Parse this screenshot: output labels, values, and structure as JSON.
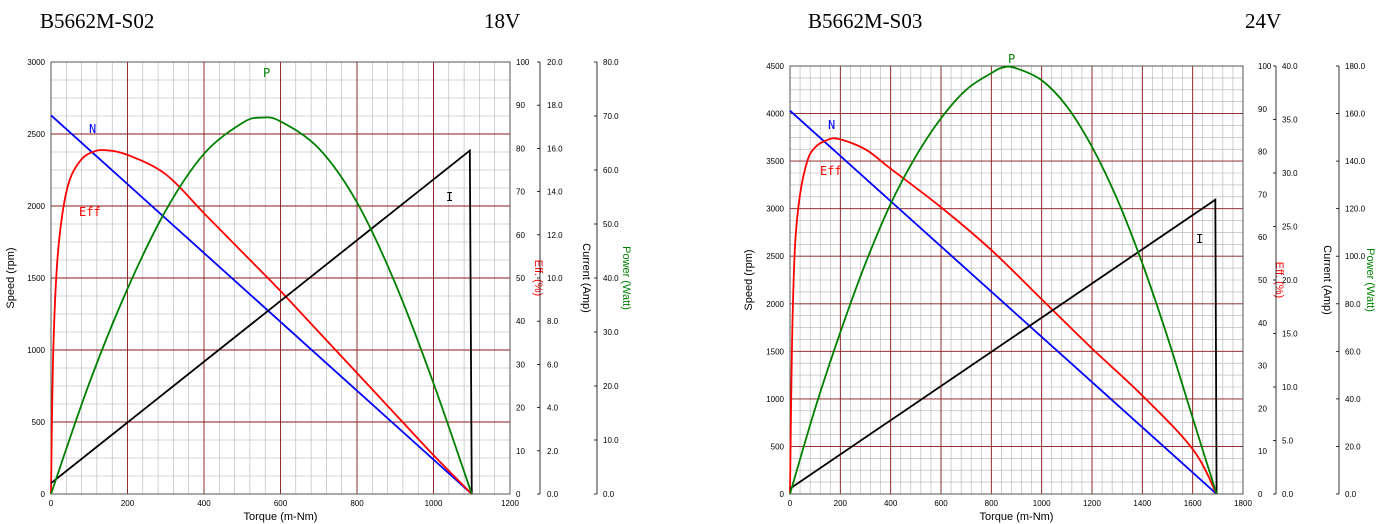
{
  "colors": {
    "speed": "#0000ff",
    "efficiency": "#ff0000",
    "current": "#000000",
    "power": "#008000",
    "major_grid": "#8b1a1a",
    "minor_grid": "#b0b0b0"
  },
  "chart_data": [
    {
      "type": "line",
      "model": "B5662M-S02",
      "voltage": "18V",
      "xlabel": "Torque (m-Nm)",
      "xlim": [
        0,
        1200
      ],
      "xticks": [
        "0",
        "200",
        "400",
        "600",
        "800",
        "1000",
        "1200"
      ],
      "grid": true,
      "axes": {
        "speed": {
          "label": "Speed (rpm)",
          "lim": [
            0,
            3000
          ],
          "ticks": [
            "0",
            "500",
            "1000",
            "1500",
            "2000",
            "2500",
            "3000"
          ]
        },
        "eff": {
          "label": "Eff. (%)",
          "lim": [
            0,
            100
          ],
          "ticks": [
            "0",
            "10",
            "20",
            "30",
            "40",
            "50",
            "60",
            "70",
            "80",
            "90",
            "100"
          ]
        },
        "current": {
          "label": "Current (Amp)",
          "lim": [
            0,
            20
          ],
          "ticks": [
            "0.0",
            "2.0",
            "4.0",
            "6.0",
            "8.0",
            "10.0",
            "12.0",
            "14.0",
            "16.0",
            "18.0",
            "20.0"
          ]
        },
        "power": {
          "label": "Power (Watt)",
          "lim": [
            0,
            80
          ],
          "ticks": [
            "0.0",
            "10.0",
            "20.0",
            "30.0",
            "40.0",
            "50.0",
            "60.0",
            "70.0",
            "80.0"
          ]
        }
      },
      "series": [
        {
          "name": "N",
          "axis": "speed",
          "color": "#0000ff",
          "points": [
            [
              0,
              2630
            ],
            [
              1100,
              0
            ]
          ]
        },
        {
          "name": "Eff",
          "axis": "eff",
          "color": "#ff0000",
          "points": [
            [
              0,
              0
            ],
            [
              5,
              30
            ],
            [
              15,
              52
            ],
            [
              30,
              65
            ],
            [
              50,
              73
            ],
            [
              80,
              77.5
            ],
            [
              110,
              79.2
            ],
            [
              140,
              79.6
            ],
            [
              200,
              78.5
            ],
            [
              300,
              74
            ],
            [
              400,
              65
            ],
            [
              500,
              56
            ],
            [
              600,
              47
            ],
            [
              700,
              37.5
            ],
            [
              800,
              28
            ],
            [
              900,
              18.5
            ],
            [
              1000,
              9
            ],
            [
              1100,
              0
            ]
          ]
        },
        {
          "name": "I",
          "axis": "current",
          "color": "#000000",
          "points": [
            [
              0,
              0.5
            ],
            [
              1095,
              15.9
            ],
            [
              1100,
              0
            ]
          ]
        },
        {
          "name": "P",
          "axis": "power",
          "color": "#008000",
          "points": [
            [
              0,
              0
            ],
            [
              100,
              20.5
            ],
            [
              200,
              38
            ],
            [
              300,
              52.5
            ],
            [
              400,
              63
            ],
            [
              500,
              68.7
            ],
            [
              550,
              69.7
            ],
            [
              600,
              69
            ],
            [
              700,
              64
            ],
            [
              800,
              54
            ],
            [
              900,
              39
            ],
            [
              1000,
              20.5
            ],
            [
              1100,
              0
            ]
          ]
        }
      ]
    },
    {
      "type": "line",
      "model": "B5662M-S03",
      "voltage": "24V",
      "xlabel": "Torque (m-Nm)",
      "xlim": [
        0,
        1800
      ],
      "xticks": [
        "0",
        "200",
        "400",
        "600",
        "800",
        "1000",
        "1200",
        "1400",
        "1600",
        "1800"
      ],
      "grid": true,
      "axes": {
        "speed": {
          "label": "Speed (rpm)",
          "lim": [
            0,
            4500
          ],
          "ticks": [
            "0",
            "500",
            "1000",
            "1500",
            "2000",
            "2500",
            "3000",
            "3500",
            "4000",
            "4500"
          ]
        },
        "eff": {
          "label": "Eff. (%)",
          "lim": [
            0,
            100
          ],
          "ticks": [
            "0",
            "10",
            "20",
            "30",
            "40",
            "50",
            "60",
            "70",
            "80",
            "90",
            "100"
          ]
        },
        "current": {
          "label": "Current (Amp)",
          "lim": [
            0,
            40
          ],
          "ticks": [
            "0.0",
            "5.0",
            "10.0",
            "15.0",
            "20.0",
            "25.0",
            "30.0",
            "35.0",
            "40.0"
          ]
        },
        "power": {
          "label": "Power (Watt)",
          "lim": [
            0,
            180
          ],
          "ticks": [
            "0.0",
            "20.0",
            "40.0",
            "60.0",
            "80.0",
            "100.0",
            "120.0",
            "140.0",
            "160.0",
            "180.0"
          ]
        }
      },
      "series": [
        {
          "name": "N",
          "axis": "speed",
          "color": "#0000ff",
          "points": [
            [
              0,
              4030
            ],
            [
              1695,
              0
            ]
          ]
        },
        {
          "name": "Eff",
          "axis": "eff",
          "color": "#ff0000",
          "points": [
            [
              0,
              0
            ],
            [
              8,
              35
            ],
            [
              20,
              58
            ],
            [
              40,
              70
            ],
            [
              70,
              78
            ],
            [
              100,
              81
            ],
            [
              140,
              82.5
            ],
            [
              190,
              83
            ],
            [
              300,
              80.5
            ],
            [
              400,
              76
            ],
            [
              600,
              67
            ],
            [
              800,
              57
            ],
            [
              1000,
              45.5
            ],
            [
              1200,
              34
            ],
            [
              1400,
              23
            ],
            [
              1600,
              10.5
            ],
            [
              1695,
              0
            ]
          ]
        },
        {
          "name": "I",
          "axis": "current",
          "color": "#000000",
          "points": [
            [
              0,
              0.5
            ],
            [
              1690,
              27.5
            ],
            [
              1695,
              0
            ]
          ]
        },
        {
          "name": "P",
          "axis": "power",
          "color": "#008000",
          "points": [
            [
              0,
              0
            ],
            [
              100,
              36
            ],
            [
              200,
              68
            ],
            [
              300,
              97
            ],
            [
              400,
              122
            ],
            [
              500,
              142
            ],
            [
              600,
              158
            ],
            [
              700,
              170
            ],
            [
              800,
              177
            ],
            [
              850,
              179.5
            ],
            [
              900,
              179
            ],
            [
              1000,
              174
            ],
            [
              1100,
              163
            ],
            [
              1200,
              146
            ],
            [
              1300,
              124
            ],
            [
              1400,
              97
            ],
            [
              1500,
              66
            ],
            [
              1600,
              32
            ],
            [
              1695,
              0
            ]
          ]
        }
      ]
    }
  ]
}
